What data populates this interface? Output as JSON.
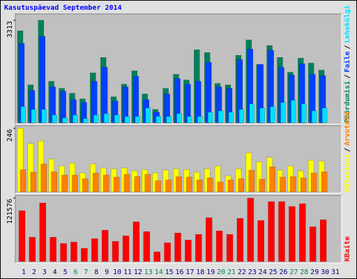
{
  "chart_data": [
    {
      "type": "bar",
      "title": "Kasutuspäevad September 2014",
      "categories": [
        "1",
        "2",
        "3",
        "4",
        "5",
        "6",
        "7",
        "8",
        "9",
        "10",
        "11",
        "12",
        "13",
        "14",
        "15",
        "16",
        "17",
        "18",
        "19",
        "20",
        "21",
        "22",
        "23",
        "24",
        "25",
        "26",
        "27",
        "28",
        "29",
        "30",
        "31"
      ],
      "category_colors": [
        "#000080",
        "#000080",
        "#000080",
        "#000080",
        "#000080",
        "#00805c",
        "#00805c",
        "#000080",
        "#000080",
        "#000080",
        "#000080",
        "#000080",
        "#00805c",
        "#00805c",
        "#000080",
        "#000080",
        "#000080",
        "#000080",
        "#000080",
        "#00805c",
        "#00805c",
        "#000080",
        "#000080",
        "#000080",
        "#000080",
        "#000080",
        "#00805c",
        "#00805c",
        "#000080",
        "#000080",
        "#000080"
      ],
      "legend_separator": "/",
      "ylim": [
        0,
        3313
      ],
      "yticks": [
        3313
      ],
      "series": [
        {
          "name": "Pöördumisi",
          "color": "#00805c",
          "values": [
            2973,
            1225,
            3313,
            1339,
            1112,
            953,
            772,
            1611,
            2111,
            840,
            1248,
            1679,
            931,
            431,
            1112,
            1566,
            1384,
            2361,
            2270,
            1271,
            1225,
            2179,
            2678,
            1884,
            2497,
            2111,
            1634,
            2088,
            1929,
            1702,
            null
          ]
        },
        {
          "name": "Faile",
          "color": "#0040ff",
          "values": [
            2565,
            1044,
            2792,
            1158,
            1021,
            749,
            658,
            1339,
            1793,
            704,
            1158,
            1498,
            749,
            340,
            931,
            1430,
            1248,
            1339,
            1952,
            1158,
            1112,
            2043,
            2383,
            1884,
            2338,
            1793,
            1543,
            1907,
            1566,
            1521,
            null
          ]
        },
        {
          "name": "Lehekülgi",
          "color": "#00e0ff",
          "values": [
            522,
            431,
            431,
            250,
            159,
            250,
            136,
            250,
            295,
            250,
            204,
            204,
            477,
            204,
            204,
            295,
            204,
            204,
            340,
            386,
            340,
            431,
            613,
            477,
            522,
            658,
            726,
            613,
            386,
            477,
            null
          ]
        }
      ]
    },
    {
      "type": "bar",
      "ylim": [
        0,
        246
      ],
      "yticks": [
        246
      ],
      "series": [
        {
          "name": "Külastusi",
          "color": "#ffff00",
          "values": [
            246,
            187,
            197,
            127,
            100,
            111,
            73,
            108,
            92,
            89,
            92,
            81,
            86,
            73,
            84,
            89,
            86,
            76,
            89,
            100,
            62,
            89,
            151,
            116,
            133,
            84,
            100,
            81,
            122,
            119,
            null
          ]
        },
        {
          "name": "Arvuteid",
          "color": "#ff8000",
          "values": [
            86,
            76,
            108,
            78,
            65,
            65,
            51,
            73,
            65,
            57,
            68,
            59,
            68,
            43,
            46,
            59,
            57,
            46,
            54,
            38,
            46,
            51,
            84,
            49,
            97,
            57,
            59,
            54,
            73,
            78,
            null
          ]
        }
      ]
    },
    {
      "type": "bar",
      "ylim": [
        0,
        121576
      ],
      "yticks": [
        121576
      ],
      "series": [
        {
          "name": "KBaite",
          "color": "#ff0000",
          "values": [
            97530,
            46760,
            112224,
            46760,
            34736,
            37408,
            25384,
            44088,
            60120,
            38744,
            49432,
            76152,
            57448,
            18704,
            36072,
            54776,
            41416,
            52104,
            84168,
            58784,
            52104,
            82832,
            121576,
            78824,
            114896,
            114896,
            105544,
            110888,
            66800,
            80160,
            null
          ]
        }
      ]
    }
  ]
}
